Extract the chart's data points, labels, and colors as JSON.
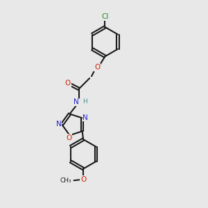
{
  "bg": "#e8e8e8",
  "bond_color": "#1a1a1a",
  "bond_lw": 1.5,
  "dbo": 0.06,
  "atom_colors": {
    "C": "#1a1a1a",
    "N": "#2222cc",
    "O": "#cc2200",
    "Cl": "#228B22",
    "H": "#4a9090"
  },
  "fs": 8.5,
  "fs_small": 7.5
}
